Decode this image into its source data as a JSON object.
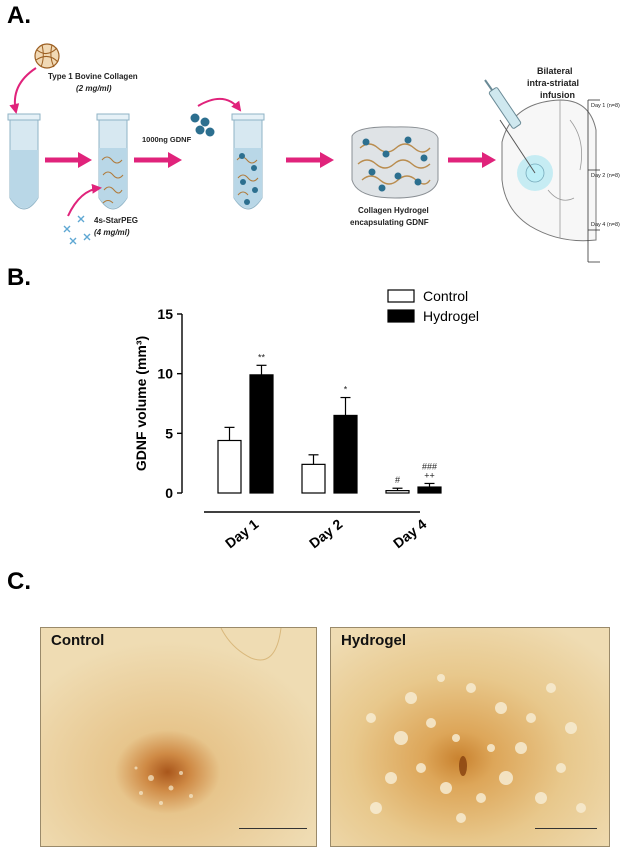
{
  "panels": {
    "a": "A.",
    "b": "B.",
    "c": "C."
  },
  "schematic": {
    "collagen": "Type 1 Bovine Collagen",
    "collagen_conc": "(2 mg/ml)",
    "starpeg": "4s-StarPEG",
    "starpeg_conc": "(4 mg/ml)",
    "gdnf": "1000ng  GDNF",
    "hydrogel_line1": "Collagen Hydrogel",
    "hydrogel_line2": "encapsulating GDNF",
    "infusion_line1": "Bilateral",
    "infusion_line2": "intra-striatal",
    "infusion_line3": "infusion",
    "timepoints": [
      "Day 1 (n=8)",
      "Day 2 (n=8)",
      "Day 4 (n=8)"
    ],
    "colors": {
      "arrow": "#e0237b",
      "gdnf": "#2c6f8f",
      "tube": "#cfe3ee",
      "collagen": "#c08a4a"
    }
  },
  "chart_data": {
    "type": "bar",
    "categories": [
      "Day 1",
      "Day 2",
      "Day 4"
    ],
    "series": [
      {
        "name": "Control",
        "values": [
          4.4,
          2.4,
          0.2
        ],
        "errors": [
          1.1,
          0.8,
          0.2
        ],
        "fill": "#ffffff"
      },
      {
        "name": "Hydrogel",
        "values": [
          9.9,
          6.5,
          0.5
        ],
        "errors": [
          0.8,
          1.5,
          0.3
        ],
        "fill": "#000000"
      }
    ],
    "annotations": [
      {
        "category": "Day 1",
        "series": "Hydrogel",
        "text": "**"
      },
      {
        "category": "Day 2",
        "series": "Hydrogel",
        "text": "*"
      },
      {
        "category": "Day 4",
        "series": "Control",
        "text": "#"
      },
      {
        "category": "Day 4",
        "series": "Hydrogel",
        "text": "###"
      },
      {
        "category": "Day 4",
        "series": "Hydrogel",
        "text": "++"
      }
    ],
    "ylabel": "GDNF volume (mm³)",
    "ylim": [
      0,
      15
    ],
    "yticks": [
      0,
      5,
      10,
      15
    ],
    "legend": "top-right",
    "grid": false
  },
  "micrographs": [
    {
      "title": "Control",
      "tone": "#e9d3a4",
      "spot": "#b5601d"
    },
    {
      "title": "Hydrogel",
      "tone": "#e4c690",
      "spot": "#c07126"
    }
  ]
}
